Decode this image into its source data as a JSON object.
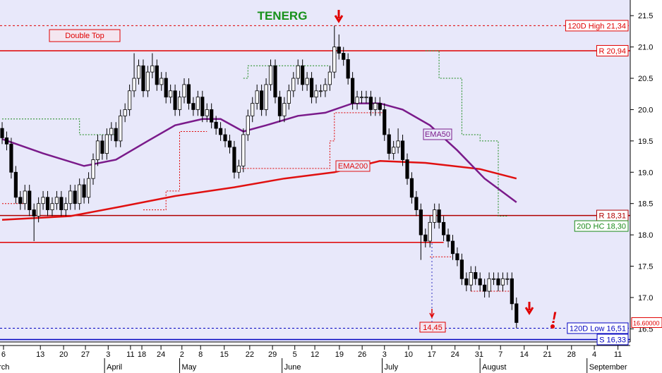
{
  "chart_data": {
    "type": "candlestick",
    "title": "TENERG",
    "ylim": [
      16.29,
      21.75
    ],
    "yticks": [
      21.5,
      {
        "value": 21,
        "label": "21.0"
      },
      20.5,
      {
        "value": 20,
        "label": "20.0"
      },
      19.5,
      {
        "value": 19,
        "label": "19.0"
      },
      18.5,
      {
        "value": 18,
        "label": "18.0"
      },
      17.5,
      {
        "value": 17,
        "label": "17.0"
      },
      16.5
    ],
    "xlim": [
      -0.47,
      138
    ],
    "xticks": [
      {
        "value": 0.3,
        "label": "6"
      },
      {
        "value": 8.4,
        "label": "13"
      },
      {
        "value": 13.5,
        "label": "20"
      },
      {
        "value": 18.3,
        "label": "27"
      },
      {
        "value": 23.3,
        "label": "3"
      },
      {
        "value": 28.2,
        "label": "11"
      },
      {
        "value": 30.7,
        "label": "18"
      },
      {
        "value": 34.9,
        "label": "24"
      },
      {
        "value": 39.5,
        "label": "2"
      },
      {
        "value": 43.6,
        "label": "8"
      },
      {
        "value": 48.8,
        "label": "15"
      },
      {
        "value": 54.4,
        "label": "22"
      },
      {
        "value": 59.4,
        "label": "29"
      },
      {
        "value": 64.3,
        "label": "5"
      },
      {
        "value": 68.7,
        "label": "12"
      },
      {
        "value": 74.1,
        "label": "19"
      },
      {
        "value": 79.1,
        "label": "26"
      },
      {
        "value": 84,
        "label": "3"
      },
      {
        "value": 89.3,
        "label": "10"
      },
      {
        "value": 94.4,
        "label": "17"
      },
      {
        "value": 99.5,
        "label": "24"
      },
      {
        "value": 104.8,
        "label": "31"
      },
      {
        "value": 109.5,
        "label": "7"
      },
      {
        "value": 114.7,
        "label": "14"
      },
      {
        "value": 119.8,
        "label": "21"
      },
      {
        "value": 125.1,
        "label": "28"
      },
      {
        "value": 130.1,
        "label": "4"
      },
      {
        "value": 135.3,
        "label": "11"
      }
    ],
    "months": [
      {
        "value": -3.6,
        "label": "March"
      },
      {
        "value": 22.5,
        "label": "April"
      },
      {
        "value": 39,
        "label": "May"
      },
      {
        "value": 61.5,
        "label": "June"
      },
      {
        "value": 83.5,
        "label": "July"
      },
      {
        "value": 105,
        "label": "August"
      },
      {
        "value": 128.5,
        "label": "September"
      }
    ],
    "ohlc": [
      [
        19.7,
        19.8,
        19.45,
        19.55
      ],
      [
        19.55,
        19.65,
        19.35,
        19.45
      ],
      [
        19.45,
        19.55,
        18.9,
        19.0
      ],
      [
        19.0,
        19.1,
        18.5,
        18.6
      ],
      [
        18.6,
        18.7,
        18.4,
        18.5
      ],
      [
        18.5,
        18.8,
        18.4,
        18.7
      ],
      [
        18.7,
        18.8,
        18.3,
        18.4
      ],
      [
        18.4,
        18.5,
        17.9,
        18.3
      ],
      [
        18.3,
        18.6,
        18.2,
        18.5
      ],
      [
        18.5,
        18.7,
        18.4,
        18.6
      ],
      [
        18.6,
        18.7,
        18.3,
        18.4
      ],
      [
        18.4,
        18.6,
        18.3,
        18.5
      ],
      [
        18.5,
        18.7,
        18.4,
        18.6
      ],
      [
        18.6,
        18.7,
        18.3,
        18.4
      ],
      [
        18.4,
        18.6,
        18.3,
        18.5
      ],
      [
        18.5,
        18.8,
        18.4,
        18.7
      ],
      [
        18.7,
        18.8,
        18.4,
        18.5
      ],
      [
        18.5,
        18.9,
        18.4,
        18.8
      ],
      [
        18.8,
        18.9,
        18.5,
        18.6
      ],
      [
        18.6,
        19.0,
        18.5,
        18.9
      ],
      [
        18.9,
        19.3,
        18.8,
        19.2
      ],
      [
        19.2,
        19.6,
        19.1,
        19.5
      ],
      [
        19.5,
        19.6,
        19.2,
        19.3
      ],
      [
        19.3,
        19.7,
        19.2,
        19.6
      ],
      [
        19.6,
        19.8,
        19.5,
        19.7
      ],
      [
        19.7,
        19.8,
        19.4,
        19.5
      ],
      [
        19.5,
        20.0,
        19.4,
        19.9
      ],
      [
        19.9,
        20.1,
        19.8,
        20.0
      ],
      [
        20.0,
        20.4,
        19.9,
        20.3
      ],
      [
        20.3,
        20.9,
        20.2,
        20.5
      ],
      [
        20.5,
        20.8,
        20.4,
        20.7
      ],
      [
        20.7,
        20.8,
        20.2,
        20.3
      ],
      [
        20.3,
        20.7,
        20.2,
        20.6
      ],
      [
        20.6,
        20.9,
        20.5,
        20.7
      ],
      [
        20.7,
        20.8,
        20.3,
        20.4
      ],
      [
        20.4,
        20.6,
        20.3,
        20.5
      ],
      [
        20.5,
        20.6,
        20.1,
        20.2
      ],
      [
        20.2,
        20.4,
        20.1,
        20.3
      ],
      [
        20.3,
        20.4,
        19.9,
        20.0
      ],
      [
        20.0,
        20.3,
        19.9,
        20.2
      ],
      [
        20.2,
        20.5,
        20.1,
        20.4
      ],
      [
        20.4,
        20.5,
        20.0,
        20.1
      ],
      [
        20.1,
        20.2,
        19.9,
        20.0
      ],
      [
        20.0,
        20.3,
        19.9,
        20.2
      ],
      [
        20.2,
        20.3,
        19.8,
        19.9
      ],
      [
        19.9,
        20.1,
        19.8,
        20.0
      ],
      [
        20.0,
        20.1,
        19.7,
        19.8
      ],
      [
        19.8,
        19.9,
        19.6,
        19.7
      ],
      [
        19.7,
        19.8,
        19.5,
        19.6
      ],
      [
        19.6,
        19.7,
        19.4,
        19.5
      ],
      [
        19.5,
        19.6,
        19.3,
        19.4
      ],
      [
        19.4,
        19.5,
        18.9,
        19.0
      ],
      [
        19.0,
        19.2,
        18.9,
        19.1
      ],
      [
        19.1,
        19.7,
        19.0,
        19.6
      ],
      [
        19.6,
        20.0,
        19.5,
        19.9
      ],
      [
        19.9,
        20.2,
        19.8,
        20.1
      ],
      [
        20.1,
        20.4,
        20.0,
        20.3
      ],
      [
        20.3,
        20.4,
        19.9,
        20.0
      ],
      [
        20.0,
        20.5,
        19.9,
        20.4
      ],
      [
        20.4,
        20.8,
        20.3,
        20.7
      ],
      [
        20.7,
        20.8,
        20.1,
        20.2
      ],
      [
        20.2,
        20.3,
        19.8,
        19.9
      ],
      [
        19.9,
        20.2,
        19.8,
        20.1
      ],
      [
        20.1,
        20.4,
        20.0,
        20.3
      ],
      [
        20.3,
        20.6,
        20.2,
        20.5
      ],
      [
        20.5,
        20.8,
        20.4,
        20.7
      ],
      [
        20.7,
        20.8,
        20.3,
        20.4
      ],
      [
        20.4,
        20.6,
        20.3,
        20.5
      ],
      [
        20.5,
        20.6,
        20.1,
        20.2
      ],
      [
        20.2,
        20.4,
        20.1,
        20.3
      ],
      [
        20.3,
        20.4,
        20.2,
        20.3
      ],
      [
        20.3,
        20.5,
        20.2,
        20.4
      ],
      [
        20.4,
        20.7,
        20.3,
        20.6
      ],
      [
        20.6,
        21.34,
        20.5,
        21.0
      ],
      [
        21.0,
        21.2,
        20.8,
        20.9
      ],
      [
        20.9,
        21.0,
        20.7,
        20.8
      ],
      [
        20.8,
        20.9,
        20.4,
        20.5
      ],
      [
        20.5,
        20.6,
        20.0,
        20.1
      ],
      [
        20.1,
        20.3,
        20.0,
        20.2
      ],
      [
        20.2,
        20.3,
        20.1,
        20.2
      ],
      [
        20.2,
        20.3,
        20.1,
        20.2
      ],
      [
        20.2,
        20.3,
        19.9,
        20.0
      ],
      [
        20.0,
        20.2,
        19.9,
        20.1
      ],
      [
        20.1,
        20.2,
        19.9,
        20.0
      ],
      [
        20.0,
        20.1,
        19.5,
        19.6
      ],
      [
        19.6,
        19.7,
        19.2,
        19.3
      ],
      [
        19.3,
        19.5,
        19.2,
        19.4
      ],
      [
        19.4,
        19.7,
        19.3,
        19.5
      ],
      [
        19.5,
        19.6,
        19.1,
        19.2
      ],
      [
        19.2,
        19.3,
        18.8,
        18.9
      ],
      [
        18.9,
        19.0,
        18.5,
        18.6
      ],
      [
        18.6,
        18.7,
        18.3,
        18.4
      ],
      [
        18.4,
        18.5,
        17.6,
        18.0
      ],
      [
        18.0,
        18.1,
        17.8,
        17.9
      ],
      [
        17.9,
        18.3,
        17.8,
        18.2
      ],
      [
        18.2,
        18.5,
        18.1,
        18.4
      ],
      [
        18.4,
        18.5,
        18.1,
        18.2
      ],
      [
        18.2,
        18.3,
        17.9,
        18.0
      ],
      [
        18.0,
        18.1,
        17.8,
        17.9
      ],
      [
        17.9,
        18.0,
        17.6,
        17.7
      ],
      [
        17.7,
        17.8,
        17.5,
        17.6
      ],
      [
        17.6,
        17.7,
        17.2,
        17.3
      ],
      [
        17.3,
        17.4,
        17.1,
        17.2
      ],
      [
        17.2,
        17.5,
        17.1,
        17.4
      ],
      [
        17.4,
        17.5,
        17.2,
        17.3
      ],
      [
        17.3,
        17.4,
        17.1,
        17.2
      ],
      [
        17.2,
        17.3,
        17.0,
        17.1
      ],
      [
        17.1,
        17.4,
        17.0,
        17.3
      ],
      [
        17.3,
        17.4,
        17.2,
        17.3
      ],
      [
        17.3,
        17.4,
        17.1,
        17.2
      ],
      [
        17.2,
        17.4,
        17.1,
        17.3
      ],
      [
        17.3,
        17.4,
        17.2,
        17.3
      ],
      [
        17.3,
        17.4,
        16.8,
        16.9
      ],
      [
        16.9,
        17.0,
        16.51,
        16.6
      ]
    ],
    "lines": [
      {
        "color": "#1a8a1a",
        "style": "dotted",
        "x": [
          0,
          17,
          17,
          25,
          null,
          53,
          54,
          54,
          72,
          null,
          93,
          96,
          96,
          101,
          101,
          105,
          105,
          109,
          109,
          111
        ],
        "values": [
          19.85,
          19.85,
          19.6,
          19.6,
          null,
          20.5,
          20.5,
          20.7,
          20.7,
          null,
          20.94,
          20.94,
          20.5,
          20.5,
          19.6,
          19.6,
          19.5,
          19.5,
          18.3,
          18.3
        ]
      },
      {
        "color": "#e00000",
        "style": "dotted",
        "x": [
          0,
          5,
          null,
          31,
          36,
          36,
          39,
          39,
          45,
          null,
          52,
          72,
          72,
          73,
          73,
          84,
          null,
          94,
          99,
          null,
          103,
          112
        ],
        "values": [
          18.5,
          18.5,
          null,
          18.4,
          18.4,
          18.7,
          18.7,
          19.65,
          19.65,
          null,
          19.06,
          19.06,
          19.5,
          19.5,
          19.95,
          19.95,
          null,
          17.65,
          17.65,
          null,
          17.1,
          17.1
        ]
      },
      {
        "name": "EMA200",
        "color": "#e01010",
        "style": "solid",
        "x": [
          0,
          15,
          26,
          38,
          51,
          62,
          73,
          83,
          93,
          105,
          113
        ],
        "values": [
          18.24,
          18.3,
          18.45,
          18.62,
          18.76,
          18.9,
          19.0,
          19.18,
          19.15,
          19.05,
          18.9
        ]
      },
      {
        "name": "EMA50",
        "color": "#7a1a8a",
        "style": "solid",
        "x": [
          0,
          9,
          18,
          25,
          32,
          38,
          44,
          48,
          53,
          58,
          65,
          71,
          77,
          83,
          88,
          94,
          100,
          106,
          113
        ],
        "values": [
          19.53,
          19.3,
          19.1,
          19.2,
          19.5,
          19.75,
          19.85,
          19.85,
          19.65,
          19.75,
          19.9,
          19.95,
          20.1,
          20.1,
          20.0,
          19.75,
          19.35,
          18.9,
          18.52
        ]
      }
    ],
    "levels": [
      {
        "value": 18.3,
        "label": "20D HC 18,30",
        "color": "#1a8a1a",
        "style": "none"
      },
      {
        "value": 21.34,
        "label": "120D High 21,34",
        "color": "#e00000",
        "style": "dotted"
      },
      {
        "value": 20.94,
        "label": "R 20,94",
        "color": "#e00000",
        "style": "solid"
      },
      {
        "value": 18.31,
        "label": "R 18,31",
        "color": "#b00000",
        "style": "solid"
      },
      {
        "value": 17.88,
        "color": "#e00000",
        "style": "solid",
        "to": 97
      },
      {
        "value": 16.51,
        "label": "120D Low 16,51",
        "color": "#0000c0",
        "style": "dotted"
      },
      {
        "value": 16.33,
        "label": "S 16,33",
        "color": "#0000c0",
        "style": "solid"
      }
    ],
    "last_price": {
      "value": 16.6,
      "label": "16.60000"
    },
    "annotations": [
      "Double Top",
      "14,45",
      "!"
    ]
  }
}
